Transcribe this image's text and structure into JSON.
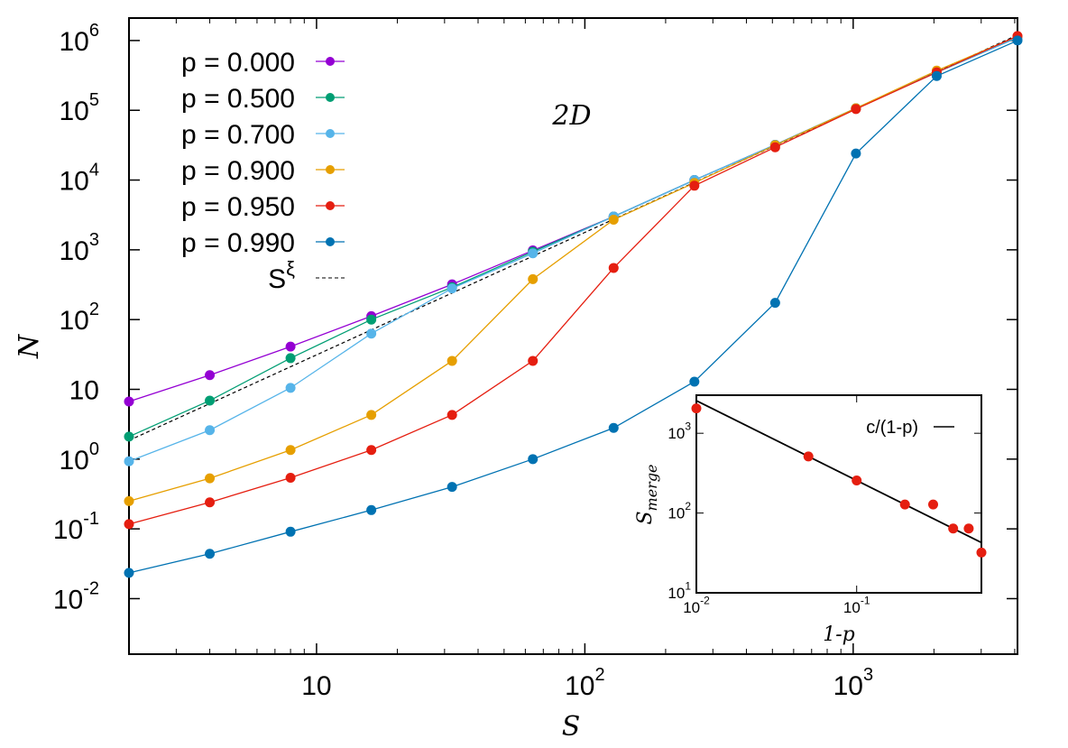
{
  "chart_data": [
    {
      "type": "line",
      "xlabel": "S",
      "ylabel": "N",
      "annotation": "2D",
      "xscale": "log",
      "yscale": "log",
      "xlim": [
        2,
        4096
      ],
      "ylim": [
        0.0016,
        2100000
      ],
      "legend_position": "top-left",
      "grid": false,
      "xticks": [
        {
          "base": "10",
          "exp": ""
        },
        {
          "base": "10",
          "exp": "2"
        },
        {
          "base": "10",
          "exp": "3"
        }
      ],
      "xtick_values": [
        10,
        100,
        1000
      ],
      "yticks": [
        {
          "base": "10",
          "exp": "-2"
        },
        {
          "base": "10",
          "exp": "-1"
        },
        {
          "base": "10",
          "exp": "0"
        },
        {
          "base": "10",
          "exp": ""
        },
        {
          "base": "10",
          "exp": "2"
        },
        {
          "base": "10",
          "exp": "3"
        },
        {
          "base": "10",
          "exp": "4"
        },
        {
          "base": "10",
          "exp": "5"
        },
        {
          "base": "10",
          "exp": "6"
        }
      ],
      "ytick_values": [
        0.01,
        0.1,
        1,
        10,
        100,
        1000,
        10000,
        100000,
        1000000
      ],
      "x": [
        2,
        4,
        8,
        16,
        32,
        64,
        128,
        256,
        512,
        1024,
        2048,
        4096
      ],
      "series": [
        {
          "name": "p = 0.000",
          "color": "#9400d3",
          "values": [
            6.7,
            16,
            41,
            112,
            320,
            980,
            3000,
            10000,
            32000,
            107000,
            350000,
            1100000
          ]
        },
        {
          "name": "p = 0.500",
          "color": "#009e73",
          "values": [
            2.1,
            6.9,
            28,
            100,
            290,
            940,
            3000,
            10000,
            32000,
            107000,
            350000,
            1100000
          ]
        },
        {
          "name": "p = 0.700",
          "color": "#56b4e9",
          "values": [
            0.93,
            2.6,
            10.5,
            63,
            280,
            890,
            3000,
            10000,
            32000,
            107000,
            350000,
            1100000
          ]
        },
        {
          "name": "p = 0.900",
          "color": "#e69f00",
          "values": [
            0.25,
            0.53,
            1.35,
            4.3,
            25.6,
            380,
            2700,
            9100,
            31600,
            107000,
            370000,
            1150000
          ]
        },
        {
          "name": "p = 0.950",
          "color": "#e51e10",
          "values": [
            0.117,
            0.24,
            0.54,
            1.35,
            4.3,
            25.6,
            550,
            8300,
            29500,
            104000,
            350000,
            1160000
          ]
        },
        {
          "name": "p = 0.990",
          "color": "#0072b2",
          "values": [
            0.0234,
            0.044,
            0.091,
            0.186,
            0.4,
            1.0,
            2.8,
            12.9,
            174,
            24000,
            310000,
            1000000
          ]
        }
      ],
      "reference": {
        "name_base": "S",
        "name_exp": "ξ",
        "color": "#000000",
        "style": "dashed",
        "x": [
          2,
          4096
        ],
        "y": [
          1.85,
          1200000
        ]
      }
    },
    {
      "type": "scatter",
      "position": "inset",
      "xlabel": "1-p",
      "ylabel_base": "S",
      "ylabel_sub": "merge",
      "xscale": "log",
      "yscale": "log",
      "xlim": [
        0.01,
        0.6
      ],
      "ylim": [
        10,
        3000
      ],
      "legend_position": "top-right",
      "xticks": [
        {
          "base": "10",
          "exp": "-2"
        },
        {
          "base": "10",
          "exp": "-1"
        }
      ],
      "xtick_values": [
        0.01,
        0.1
      ],
      "yticks": [
        {
          "base": "10",
          "exp": "1"
        },
        {
          "base": "10",
          "exp": "2"
        },
        {
          "base": "10",
          "exp": "3"
        }
      ],
      "ytick_values": [
        10,
        100,
        1000
      ],
      "points": {
        "color": "#e51e10",
        "x": [
          0.01,
          0.05,
          0.1,
          0.2,
          0.3,
          0.4,
          0.5,
          0.6
        ],
        "y": [
          2048,
          512,
          256,
          128,
          128,
          64,
          64,
          32
        ]
      },
      "fit": {
        "name": "c/(1-p)",
        "color": "#000000",
        "c": 25.6
      }
    }
  ]
}
